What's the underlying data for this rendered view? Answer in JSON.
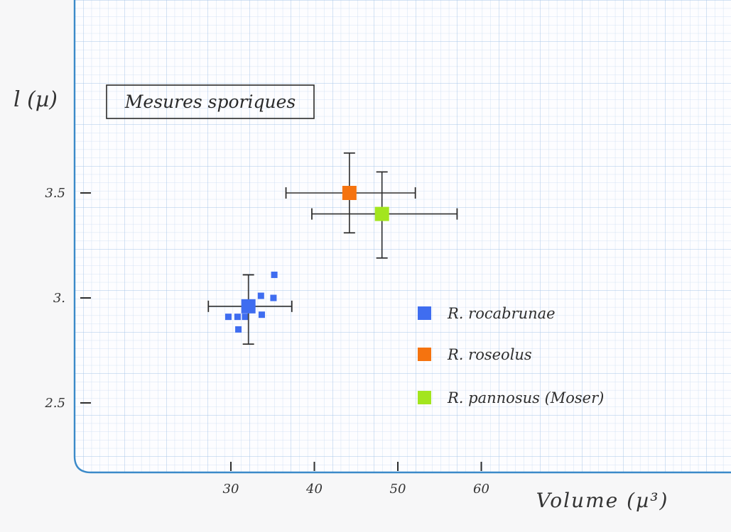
{
  "chart_data": {
    "type": "scatter",
    "title": "Mesures sporiques",
    "xlabel": "Volume (µ³)",
    "ylabel": "l (µ)",
    "x_ticks": [
      30,
      40,
      50,
      60
    ],
    "x_tick_labels": [
      "30",
      "40",
      "50",
      "60"
    ],
    "y_ticks": [
      2.5,
      3.0,
      3.5
    ],
    "y_tick_labels": [
      "2.5",
      "3.",
      "3.5"
    ],
    "xlim": [
      10,
      85
    ],
    "ylim": [
      2.2,
      4.4
    ],
    "grid": true,
    "legend_position": "bottom-right",
    "series": [
      {
        "name": "R. rocabrunae",
        "color": "#3f6df0",
        "mean": {
          "x": 32.1,
          "y": 2.96
        },
        "x_err": [
          27.3,
          37.3
        ],
        "y_err": [
          2.78,
          3.11
        ],
        "samples": [
          {
            "x": 29.7,
            "y": 2.91
          },
          {
            "x": 30.8,
            "y": 2.91
          },
          {
            "x": 31.7,
            "y": 2.91
          },
          {
            "x": 30.9,
            "y": 2.85
          },
          {
            "x": 33.6,
            "y": 3.01
          },
          {
            "x": 35.1,
            "y": 3.0
          },
          {
            "x": 35.2,
            "y": 3.11
          },
          {
            "x": 33.7,
            "y": 2.92
          }
        ]
      },
      {
        "name": "R. roseolus",
        "color": "#f5730f",
        "mean": {
          "x": 44.2,
          "y": 3.5
        },
        "x_err": [
          36.6,
          52.1
        ],
        "y_err": [
          3.31,
          3.69
        ],
        "samples": []
      },
      {
        "name": "R. pannosus (Moser)",
        "color": "#a3e51e",
        "mean": {
          "x": 48.1,
          "y": 3.4
        },
        "x_err": [
          39.7,
          57.1
        ],
        "y_err": [
          3.19,
          3.6
        ],
        "samples": []
      }
    ]
  }
}
